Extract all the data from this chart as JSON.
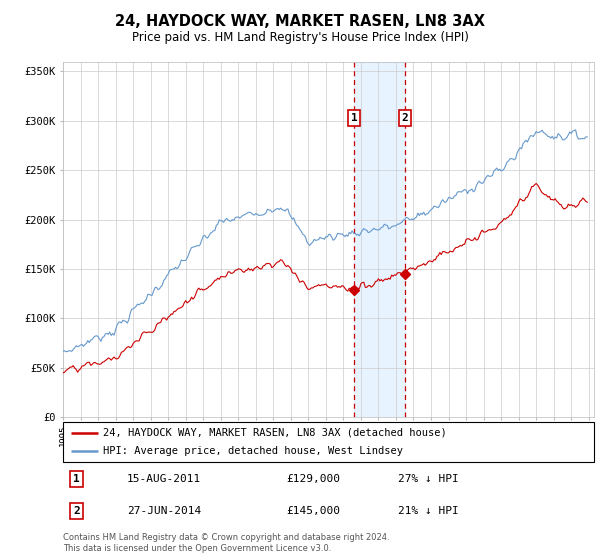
{
  "title": "24, HAYDOCK WAY, MARKET RASEN, LN8 3AX",
  "subtitle": "Price paid vs. HM Land Registry's House Price Index (HPI)",
  "legend_line1": "24, HAYDOCK WAY, MARKET RASEN, LN8 3AX (detached house)",
  "legend_line2": "HPI: Average price, detached house, West Lindsey",
  "footnote": "Contains HM Land Registry data © Crown copyright and database right 2024.\nThis data is licensed under the Open Government Licence v3.0.",
  "transaction1_date": "15-AUG-2011",
  "transaction1_price": "£129,000",
  "transaction1_hpi": "27% ↓ HPI",
  "transaction2_date": "27-JUN-2014",
  "transaction2_price": "£145,000",
  "transaction2_hpi": "21% ↓ HPI",
  "hpi_color": "#6699cc",
  "price_color": "#cc0000",
  "highlight_color": "#ddeeff",
  "vline_color": "#cc0000",
  "ylim": [
    0,
    360000
  ],
  "yticks": [
    0,
    50000,
    100000,
    150000,
    200000,
    250000,
    300000,
    350000
  ],
  "ytick_labels": [
    "£0",
    "£50K",
    "£100K",
    "£150K",
    "£200K",
    "£250K",
    "£300K",
    "£350K"
  ],
  "year_start": 1995,
  "year_end": 2025,
  "t1_year_val": 2011.622,
  "t1_price_val": 129000,
  "t2_year_val": 2014.497,
  "t2_price_val": 145000
}
